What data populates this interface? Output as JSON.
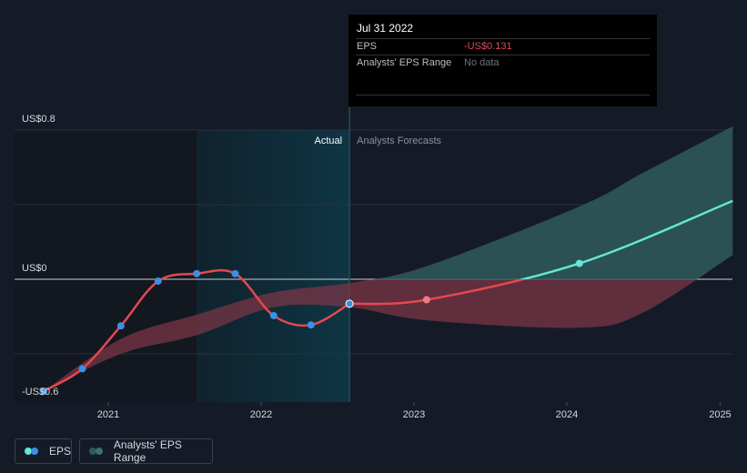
{
  "chart_data": {
    "type": "line",
    "y_axis": {
      "top_label": "US$0.8",
      "zero_label": "US$0",
      "bottom_label": "-US$0.6",
      "ylim": [
        -0.6,
        0.8
      ]
    },
    "x_axis": {
      "tick_labels": [
        "2021",
        "2022",
        "2023",
        "2024",
        "2025"
      ]
    },
    "region_labels": {
      "actual": "Actual",
      "forecast": "Analysts Forecasts"
    },
    "series": [
      {
        "name": "EPS",
        "actual": [
          {
            "x": "2020-07-31",
            "y": -0.6
          },
          {
            "x": "2020-10-31",
            "y": -0.48
          },
          {
            "x": "2021-01-31",
            "y": -0.25
          },
          {
            "x": "2021-04-30",
            "y": -0.01
          },
          {
            "x": "2021-07-31",
            "y": 0.03
          },
          {
            "x": "2021-10-31",
            "y": 0.03
          },
          {
            "x": "2022-01-31",
            "y": -0.195
          },
          {
            "x": "2022-04-30",
            "y": -0.245
          },
          {
            "x": "2022-07-31",
            "y": -0.131
          }
        ],
        "forecast": [
          {
            "x": "2022-07-31",
            "y": -0.131
          },
          {
            "x": "2023-01-31",
            "y": -0.11
          },
          {
            "x": "2024-01-31",
            "y": 0.085
          },
          {
            "x": "2025-01-31",
            "y": 0.42
          }
        ]
      }
    ],
    "analyst_range": [
      {
        "x": "2020-07-31",
        "low": -0.6,
        "high": -0.6
      },
      {
        "x": "2021-01-31",
        "low": -0.4,
        "high": -0.32
      },
      {
        "x": "2021-07-31",
        "low": -0.3,
        "high": -0.19
      },
      {
        "x": "2022-01-31",
        "low": -0.15,
        "high": -0.07
      },
      {
        "x": "2022-07-31",
        "low": -0.15,
        "high": -0.02
      },
      {
        "x": "2023-01-31",
        "low": -0.22,
        "high": 0.07
      },
      {
        "x": "2024-01-31",
        "low": -0.26,
        "high": 0.39
      },
      {
        "x": "2024-06-30",
        "low": -0.18,
        "high": 0.57
      },
      {
        "x": "2025-01-31",
        "low": 0.13,
        "high": 0.82
      }
    ],
    "grid": true,
    "colors": {
      "eps_negative": "#e5484d",
      "eps_positive": "#63e6d4",
      "eps_actual_marker": "#3b8fe6",
      "range_negative": "#7a3545",
      "range_positive": "#2f5a5a",
      "past_highlight": "#0e3443"
    }
  },
  "tooltip": {
    "date": "Jul 31 2022",
    "eps_label": "EPS",
    "eps_value": "-US$0.131",
    "range_label": "Analysts' EPS Range",
    "range_value": "No data"
  },
  "legend": {
    "eps_label": "EPS",
    "range_label": "Analysts' EPS Range"
  }
}
